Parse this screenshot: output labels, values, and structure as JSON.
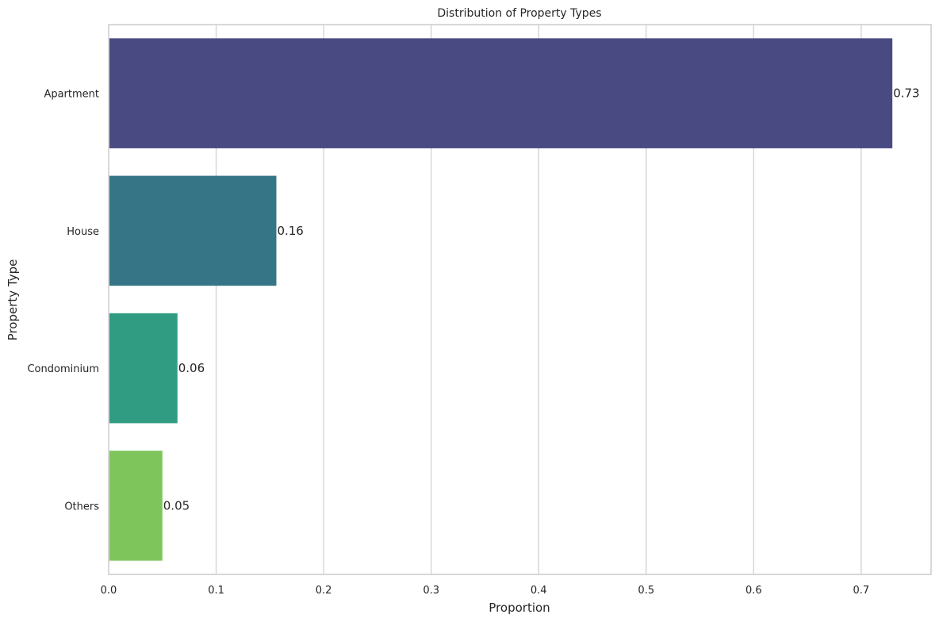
{
  "chart_data": {
    "type": "bar",
    "orientation": "horizontal",
    "title": "Distribution of Property Types",
    "xlabel": "Proportion",
    "ylabel": "Property Type",
    "categories": [
      "Apartment",
      "House",
      "Condominium",
      "Others"
    ],
    "values": [
      0.729,
      0.156,
      0.064,
      0.05
    ],
    "data_labels": [
      "0.73",
      "0.16",
      "0.06",
      "0.05"
    ],
    "colors": [
      "#4a4a82",
      "#357585",
      "#309c81",
      "#7ec65c"
    ],
    "xlim": [
      0,
      0.765
    ],
    "xticks": [
      0.0,
      0.1,
      0.2,
      0.3,
      0.4,
      0.5,
      0.6,
      0.7
    ],
    "xtick_labels": [
      "0.0",
      "0.1",
      "0.2",
      "0.3",
      "0.4",
      "0.5",
      "0.6",
      "0.7"
    ],
    "grid": "vertical"
  }
}
